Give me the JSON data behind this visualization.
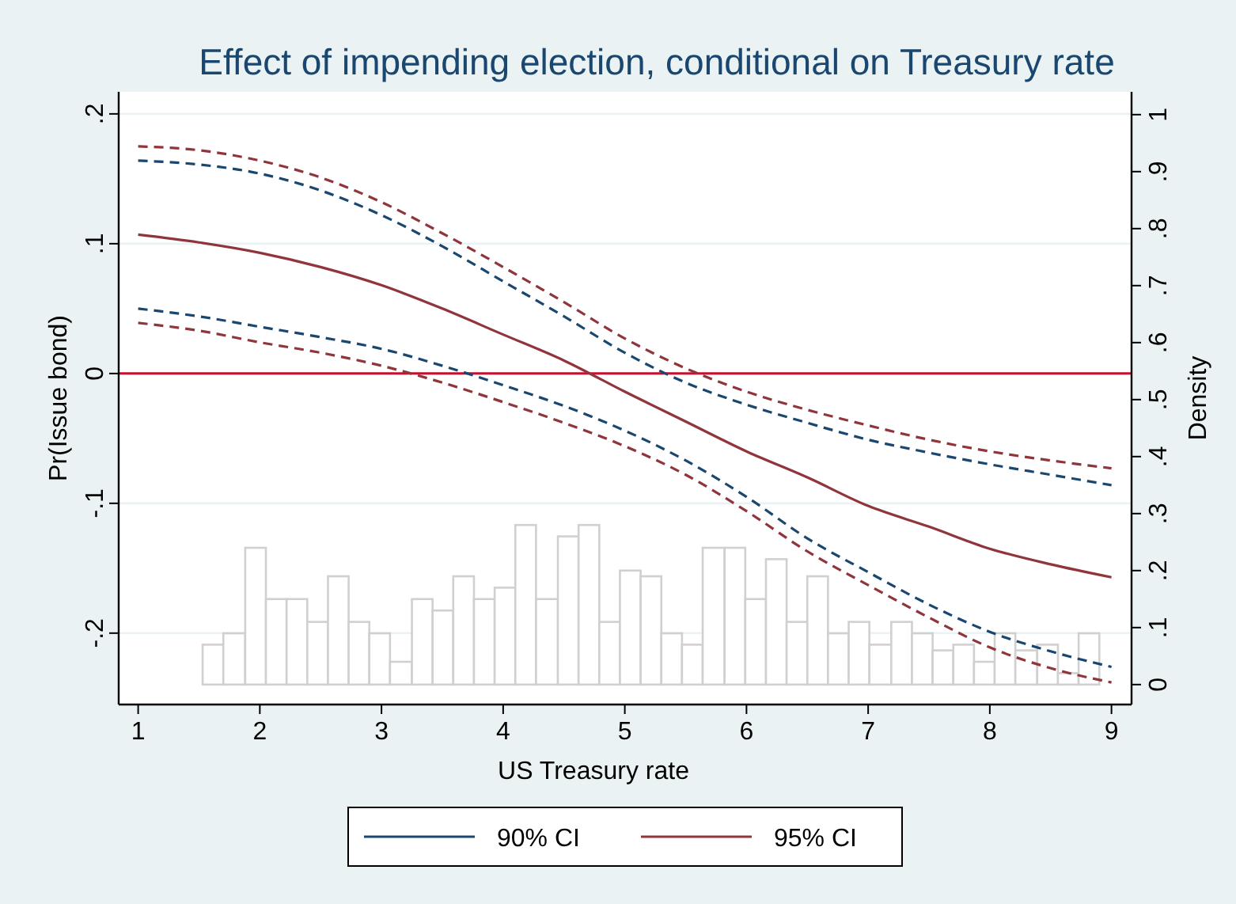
{
  "chart_data": {
    "type": "line",
    "title": "Effect of impending election, conditional on Treasury rate",
    "xlabel": "US Treasury rate",
    "ylabel": "Pr(Issue bond)",
    "y2label": "Density",
    "xlim": [
      0.84,
      9.165
    ],
    "xticks": [
      1,
      2,
      3,
      4,
      5,
      6,
      7,
      8,
      9
    ],
    "ylim": [
      -0.255,
      0.217
    ],
    "yticks": [
      {
        "value": -0.2,
        "label": "-.2"
      },
      {
        "value": -0.1,
        "label": "-.1"
      },
      0,
      {
        "value": 0.1,
        "label": ".1"
      },
      {
        "value": 0.2,
        "label": ".2"
      }
    ],
    "y2lim": [
      -0.035,
      1.04
    ],
    "y2ticks": [
      0,
      {
        "value": 0.1,
        "label": ".1"
      },
      {
        "value": 0.2,
        "label": ".2"
      },
      {
        "value": 0.3,
        "label": ".3"
      },
      {
        "value": 0.4,
        "label": ".4"
      },
      {
        "value": 0.5,
        "label": ".5"
      },
      {
        "value": 0.6,
        "label": ".6"
      },
      {
        "value": 0.7,
        "label": ".7"
      },
      {
        "value": 0.8,
        "label": ".8"
      },
      {
        "value": 0.9,
        "label": ".9"
      },
      1
    ],
    "grid": "y",
    "legend": "bottom",
    "ref_lines": [
      {
        "axis": "y",
        "value": 0,
        "color": "#c8102e"
      }
    ],
    "series": [
      {
        "type": "histogram",
        "axis": "y2",
        "color": "#d0d0d0",
        "bins": [
          1.53,
          1.7,
          1.88,
          2.05,
          2.22,
          2.39,
          2.56,
          2.73,
          2.9,
          3.07,
          3.25,
          3.42,
          3.59,
          3.76,
          3.93,
          4.1,
          4.27,
          4.45,
          4.62,
          4.79,
          4.96,
          5.13,
          5.3,
          5.47,
          5.64,
          5.82,
          5.99,
          6.16,
          6.33,
          6.5,
          6.67,
          6.84,
          7.01,
          7.19,
          7.36,
          7.53,
          7.7,
          7.87,
          8.04,
          8.21,
          8.39,
          8.56,
          8.73,
          8.9
        ],
        "values": [
          0.07,
          0.09,
          0.24,
          0.15,
          0.15,
          0.11,
          0.19,
          0.11,
          0.09,
          0.04,
          0.15,
          0.13,
          0.19,
          0.15,
          0.17,
          0.28,
          0.15,
          0.26,
          0.28,
          0.11,
          0.2,
          0.19,
          0.09,
          0.07,
          0.24,
          0.24,
          0.15,
          0.22,
          0.11,
          0.19,
          0.09,
          0.11,
          0.07,
          0.11,
          0.09,
          0.06,
          0.07,
          0.04,
          0.09,
          0.06,
          0.07,
          0.02,
          0.09
        ]
      },
      {
        "name": "90% CI",
        "color": "#1a476f",
        "line_style": "dashed",
        "x": [
          1,
          1.5,
          2,
          2.5,
          3,
          3.5,
          4,
          4.5,
          5,
          5.5,
          6,
          6.5,
          7,
          7.5,
          8,
          8.5,
          9
        ],
        "values": [
          0.164,
          0.161,
          0.154,
          0.141,
          0.122,
          0.098,
          0.071,
          0.044,
          0.016,
          -0.007,
          -0.024,
          -0.038,
          -0.051,
          -0.061,
          -0.07,
          -0.078,
          -0.086
        ]
      },
      {
        "color": "#1a476f",
        "line_style": "dashed",
        "x": [
          1,
          1.5,
          2,
          2.5,
          3,
          3.5,
          4,
          4.5,
          5,
          5.5,
          6,
          6.5,
          7,
          7.5,
          8,
          8.5,
          9
        ],
        "values": [
          0.05,
          0.044,
          0.036,
          0.028,
          0.019,
          0.006,
          -0.009,
          -0.025,
          -0.044,
          -0.067,
          -0.095,
          -0.127,
          -0.153,
          -0.178,
          -0.199,
          -0.214,
          -0.226
        ]
      },
      {
        "name": "95% CI",
        "color": "#90353b",
        "line_style": "dashed",
        "x": [
          1,
          1.5,
          2,
          2.5,
          3,
          3.5,
          4,
          4.5,
          5,
          5.5,
          6,
          6.5,
          7,
          7.5,
          8,
          8.5,
          9
        ],
        "values": [
          0.175,
          0.172,
          0.164,
          0.151,
          0.132,
          0.108,
          0.082,
          0.055,
          0.027,
          0.004,
          -0.014,
          -0.028,
          -0.04,
          -0.051,
          -0.06,
          -0.067,
          -0.073
        ]
      },
      {
        "color": "#90353b",
        "line_style": "dashed",
        "x": [
          1,
          1.5,
          2,
          2.5,
          3,
          3.5,
          4,
          4.5,
          5,
          5.5,
          6,
          6.5,
          7,
          7.5,
          8,
          8.5,
          9
        ],
        "values": [
          0.039,
          0.033,
          0.024,
          0.016,
          0.006,
          -0.007,
          -0.022,
          -0.038,
          -0.056,
          -0.078,
          -0.106,
          -0.137,
          -0.163,
          -0.188,
          -0.211,
          -0.227,
          -0.238
        ]
      },
      {
        "color": "#90353b",
        "line_style": "solid",
        "x": [
          1,
          1.5,
          2,
          2.5,
          3,
          3.5,
          4,
          4.5,
          5,
          5.5,
          6,
          6.5,
          7,
          7.5,
          8,
          8.5,
          9
        ],
        "values": [
          0.107,
          0.101,
          0.093,
          0.082,
          0.068,
          0.05,
          0.03,
          0.01,
          -0.014,
          -0.037,
          -0.06,
          -0.08,
          -0.102,
          -0.118,
          -0.135,
          -0.147,
          -0.157
        ]
      }
    ]
  }
}
